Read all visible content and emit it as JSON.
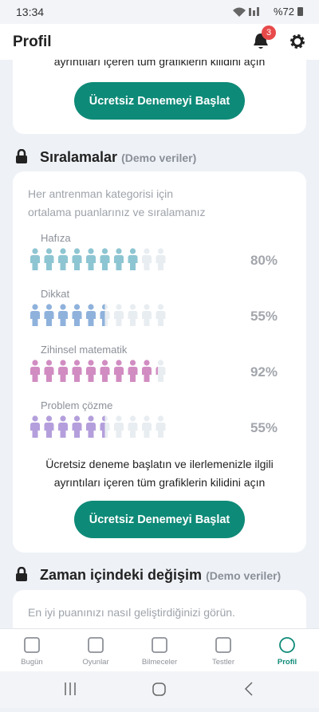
{
  "status_bar": {
    "time": "13:34",
    "battery": "%72"
  },
  "header": {
    "title": "Profil",
    "badge": "3"
  },
  "top_card": {
    "text": "ayrıntıları içeren tüm grafiklerin kilidini açın",
    "button": "Ücretsiz Denemeyi Başlat"
  },
  "rankings": {
    "title": "Sıralamalar",
    "tag": "(Demo veriler)",
    "subtitle": "Her antrenman kategorisi için ortalama puanlarınız ve sıralamanız",
    "items": [
      {
        "name": "Hafıza",
        "value": 80,
        "label": "80%",
        "color": "#8ec5d2"
      },
      {
        "name": "Dikkat",
        "value": 55,
        "label": "55%",
        "color": "#8fb2dc"
      },
      {
        "name": "Zihinsel matematik",
        "value": 92,
        "label": "92%",
        "color": "#d18cc2"
      },
      {
        "name": "Problem çözme",
        "value": 55,
        "label": "55%",
        "color": "#b49fdc"
      }
    ],
    "cta": "Ücretsiz deneme başlatın ve ilerlemenizle ilgili ayrıntıları içeren tüm grafiklerin kilidini açın",
    "button": "Ücretsiz Denemeyi Başlat"
  },
  "change": {
    "title": "Zaman içindeki değişim",
    "tag": "(Demo veriler)",
    "text": "En iyi puanınızı nasıl geliştirdiğinizi görün."
  },
  "nav": {
    "items": [
      "Bugün",
      "Oyunlar",
      "Bilmeceler",
      "Testler",
      "Profil"
    ],
    "active": 4
  }
}
